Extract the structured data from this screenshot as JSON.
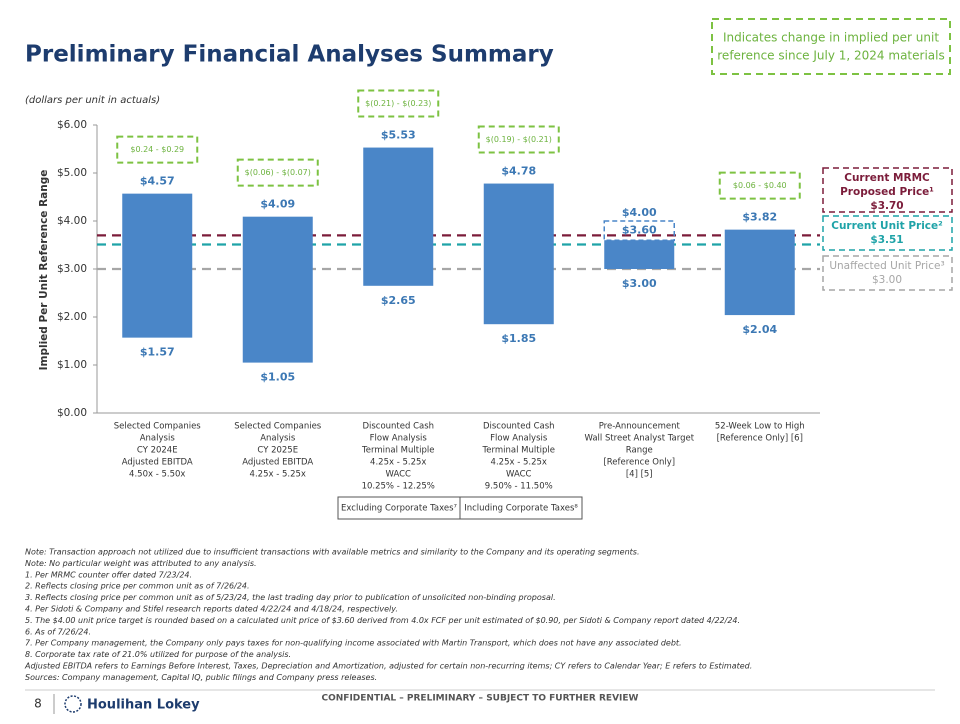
{
  "header": {
    "title": "Preliminary Financial Analyses Summary",
    "subtitle": "(dollars per unit in actuals)",
    "legend_lines": [
      "Indicates change in implied per unit",
      "reference since July 1, 2024 materials"
    ]
  },
  "chart_data": {
    "type": "floating-bar",
    "y_label": "Implied Per Unit  Reference Range",
    "ylim": [
      0,
      6
    ],
    "yticks": [
      {
        "value": 0,
        "label": "$0.00"
      },
      {
        "value": 1,
        "label": "$1.00"
      },
      {
        "value": 2,
        "label": "$2.00"
      },
      {
        "value": 3,
        "label": "$3.00"
      },
      {
        "value": 4,
        "label": "$4.00"
      },
      {
        "value": 5,
        "label": "$5.00"
      },
      {
        "value": 6,
        "label": "$6.00"
      }
    ],
    "color": "#4a86c8",
    "categories": [
      [
        "Selected Companies",
        "Analysis",
        "CY 2024E",
        "Adjusted EBITDA",
        "4.50x - 5.50x"
      ],
      [
        "Selected Companies",
        "Analysis",
        "CY 2025E",
        "Adjusted EBITDA",
        "4.25x - 5.25x"
      ],
      [
        "Discounted Cash",
        "Flow Analysis",
        "Terminal Multiple",
        "4.25x - 5.25x",
        "WACC",
        "10.25% - 12.25%"
      ],
      [
        "Discounted Cash",
        "Flow Analysis",
        "Terminal Multiple",
        "4.25x - 5.25x",
        "WACC",
        "9.50% - 11.50%"
      ],
      [
        "Pre-Announcement",
        "Wall Street Analyst Target",
        "Range",
        "[Reference Only]",
        "[4] [5]"
      ],
      [
        "52-Week Low to High",
        "[Reference Only] [6]"
      ]
    ],
    "low": [
      1.57,
      1.05,
      2.65,
      1.85,
      3.0,
      2.04
    ],
    "low_labels": [
      "$1.57",
      "$1.05",
      "$2.65",
      "$1.85",
      "$3.00",
      "$2.04"
    ],
    "high": [
      4.57,
      4.09,
      5.53,
      4.78,
      3.6,
      3.82
    ],
    "high_labels": [
      "$4.57",
      "$4.09",
      "$5.53",
      "$4.78",
      "$3.60",
      "$3.82"
    ],
    "prior_high": [
      null,
      null,
      null,
      null,
      4.0,
      null
    ],
    "prior_high_labels": [
      null,
      null,
      null,
      null,
      "$4.00",
      null
    ],
    "changes": [
      "$0.24 - $0.29",
      "$(0.06) - $(0.07)",
      "$(0.21) - $(0.23)",
      "$(0.19) - $(0.21)",
      null,
      "$0.06 - $0.40"
    ],
    "reference_lines": [
      {
        "name_lines": [
          "Current MRMC",
          "Proposed Price¹"
        ],
        "value": 3.7,
        "value_label": "$3.70",
        "color": "#7b1c3a"
      },
      {
        "name_lines": [
          "Current Unit Price²"
        ],
        "value": 3.51,
        "value_label": "$3.51",
        "color": "#1fa3a8"
      },
      {
        "name_lines": [
          "Unaffected Unit Price³"
        ],
        "value": 3.0,
        "value_label": "$3.00",
        "color": "#a6a6a6"
      }
    ],
    "brackets": [
      "Excluding Corporate Taxes⁷",
      "Including Corporate Taxes⁸"
    ]
  },
  "footnotes": [
    "Note: Transaction approach not utilized due to insufficient transactions with available metrics and similarity to the Company and its operating segments.",
    "Note: No particular weight was attributed to any analysis.",
    "1. Per MRMC counter offer dated 7/23/24.",
    "2. Reflects closing price per common unit as of 7/26/24.",
    "3. Reflects closing price per common unit as of 5/23/24, the last trading day prior to publication of unsolicited non-binding proposal.",
    "4. Per Sidoti & Company and Stifel research reports dated 4/22/24 and 4/18/24, respectively.",
    "5. The $4.00 unit price target is rounded based on a calculated unit price of $3.60 derived from 4.0x FCF per unit estimated of $0.90, per Sidoti & Company report dated 4/22/24.",
    "6. As of 7/26/24.",
    "7. Per Company management, the Company only pays taxes for non-qualifying income associated with Martin Transport, which does not have any associated debt.",
    "8. Corporate tax rate of 21.0% utilized for purpose of the analysis.",
    "Adjusted EBITDA refers to Earnings Before Interest, Taxes, Depreciation and Amortization, adjusted for certain non-recurring items; CY refers to Calendar Year; E refers to Estimated.",
    "Sources: Company management, Capital IQ, public filings and Company press releases."
  ],
  "footer": {
    "page": "8",
    "brand": "Houlihan Lokey",
    "confidential": "CONFIDENTIAL – PRELIMINARY – SUBJECT TO FURTHER REVIEW"
  }
}
